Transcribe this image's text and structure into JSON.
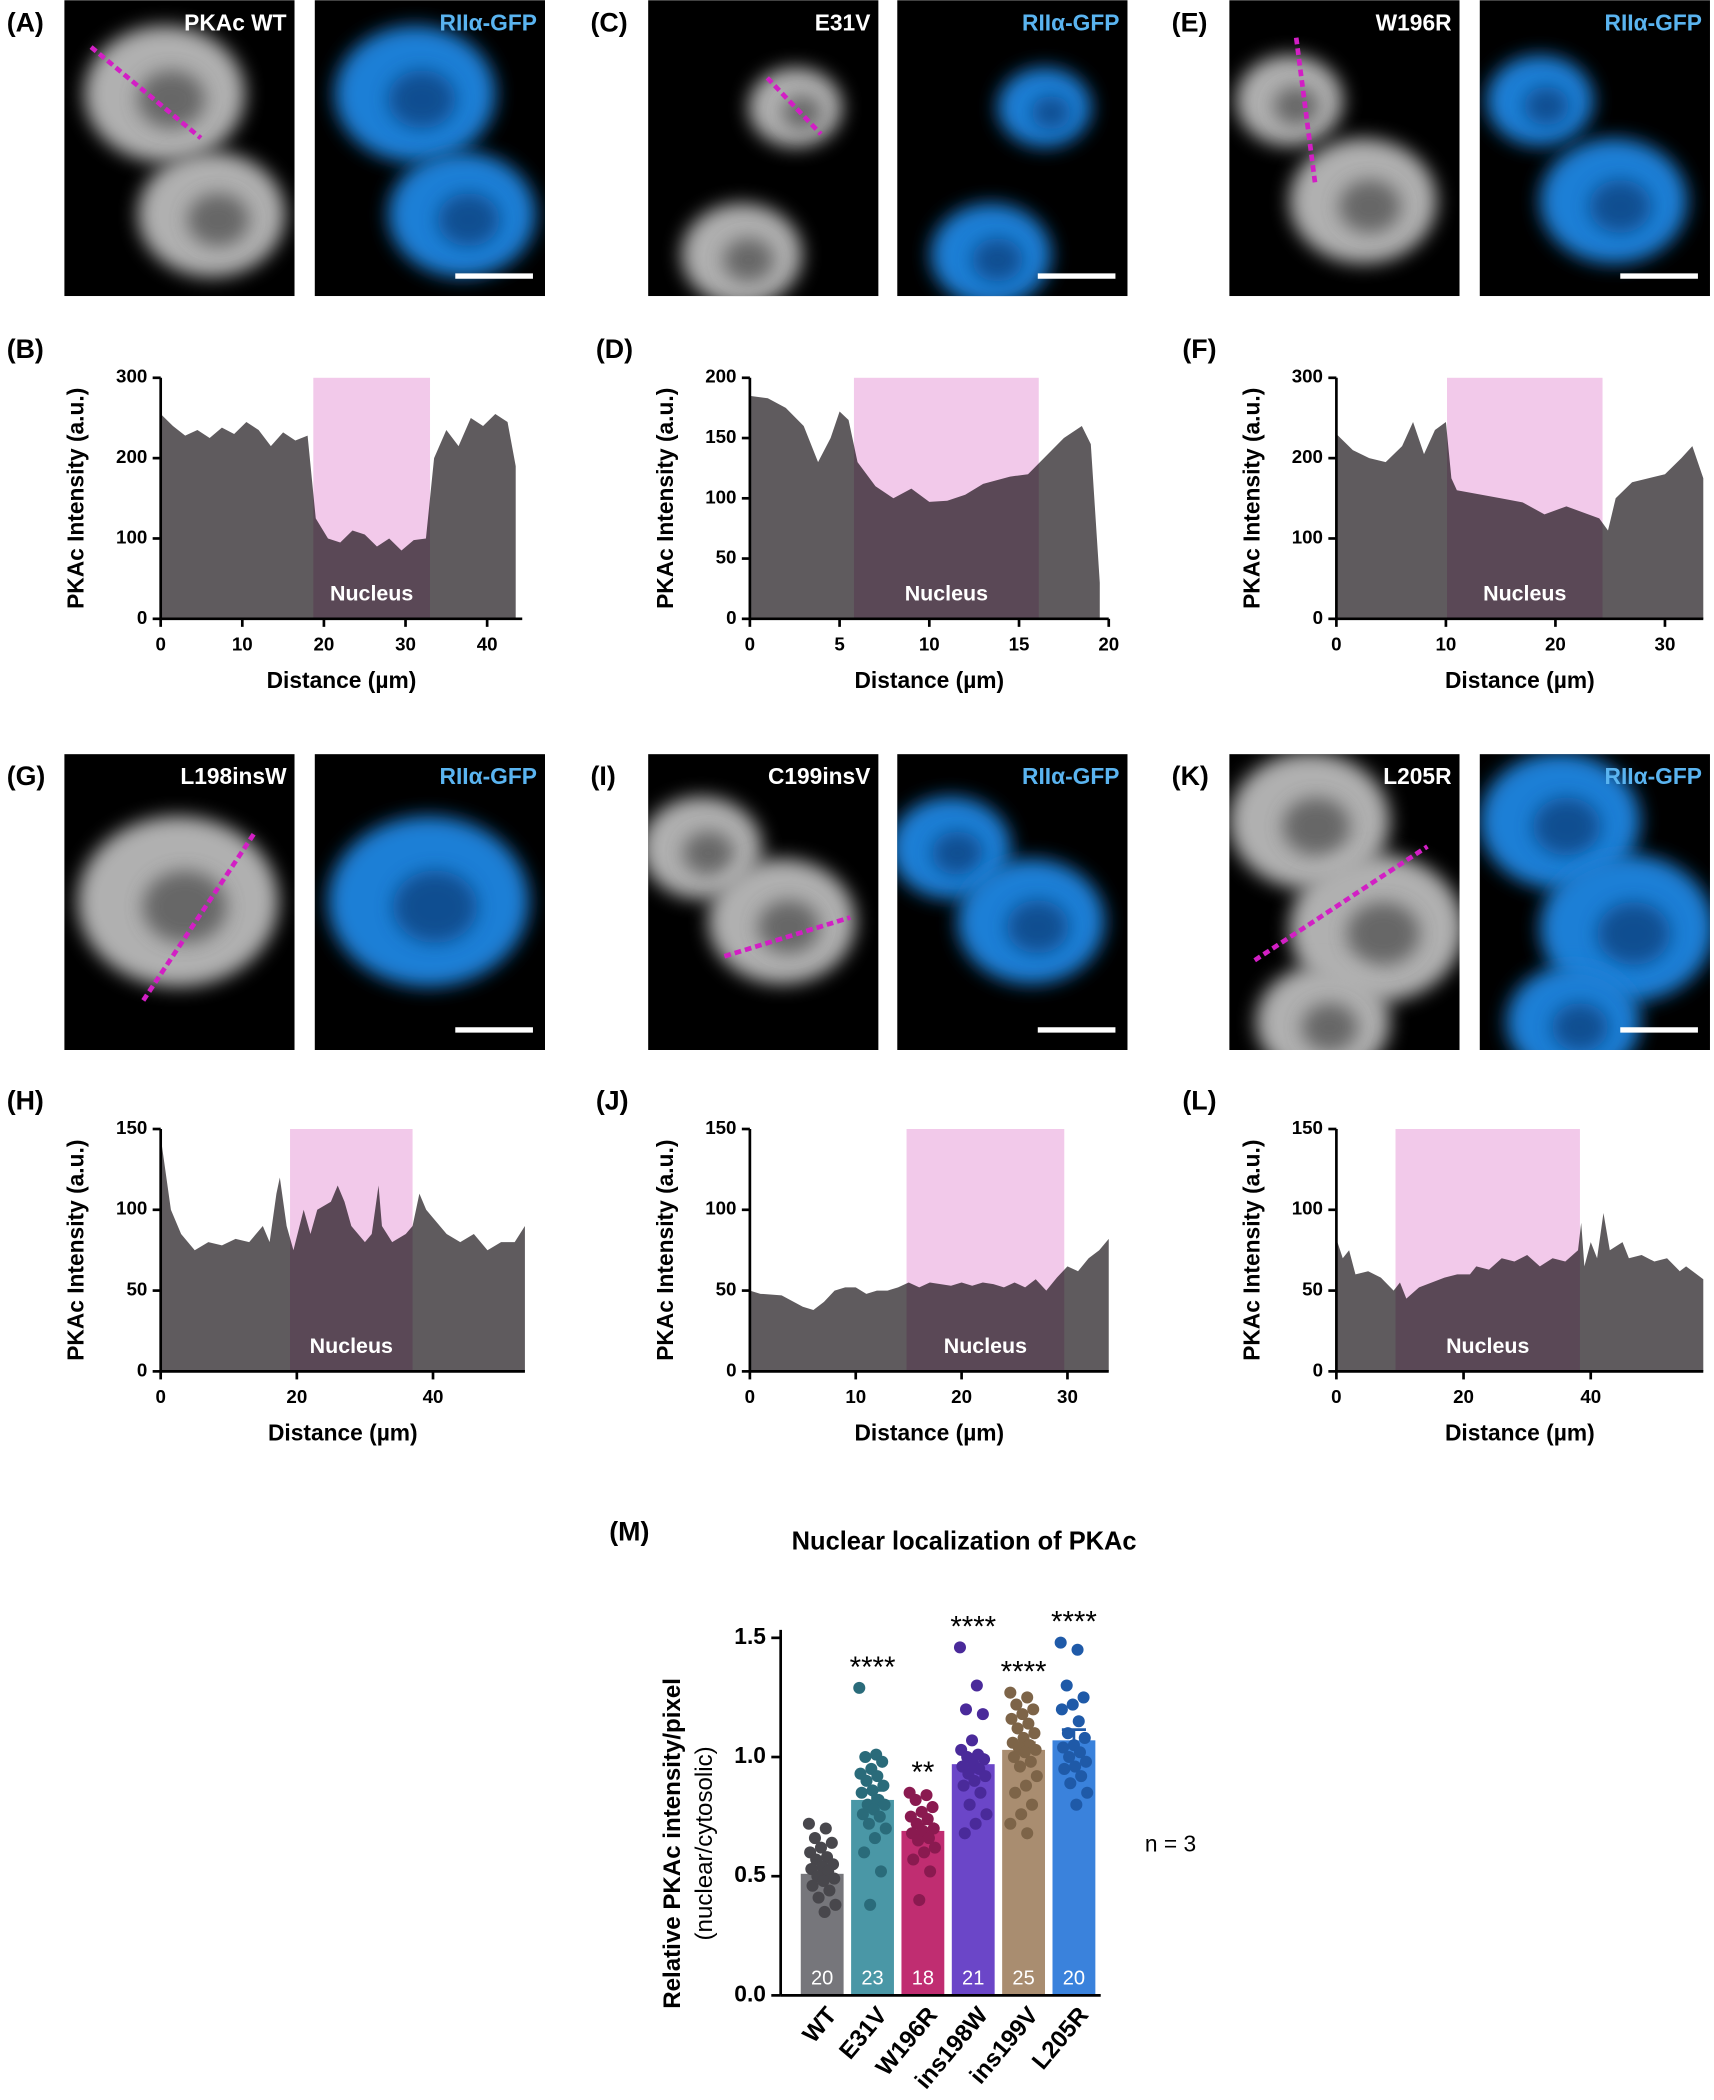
{
  "image_panels": [
    {
      "letter": "(A)",
      "label": "PKAc WT",
      "channel": "RIIα-GFP"
    },
    {
      "letter": "(C)",
      "label": "E31V",
      "channel": "RIIα-GFP"
    },
    {
      "letter": "(E)",
      "label": "W196R",
      "channel": "RIIα-GFP"
    },
    {
      "letter": "(G)",
      "label": "L198insW",
      "channel": "RIIα-GFP"
    },
    {
      "letter": "(I)",
      "label": "C199insV",
      "channel": "RIIα-GFP"
    },
    {
      "letter": "(K)",
      "label": "L205R",
      "channel": "RIIα-GFP"
    }
  ],
  "chart_data": [
    {
      "type": "area",
      "panel": "(B)",
      "xlabel": "Distance (µm)",
      "ylabel": "PKAc Intensity (a.u.)",
      "color": "#5f5b5e",
      "band_color": "#f2c9ea",
      "band": [
        18.7,
        33
      ],
      "band_label": "Nucleus",
      "xlim": [
        0,
        44.3
      ],
      "ylim": [
        0,
        300
      ],
      "xticks": [
        0,
        10,
        20,
        30,
        40
      ],
      "yticks": [
        0,
        100,
        200,
        300
      ],
      "x": [
        0,
        1.5,
        3,
        4.5,
        6,
        7.5,
        9,
        10.5,
        12,
        13.5,
        15,
        16.5,
        18,
        19,
        20.5,
        22,
        23.5,
        25,
        26.5,
        28,
        29.5,
        31,
        32.5,
        33.5,
        35,
        36.5,
        38,
        39.5,
        41,
        42.5,
        43.5
      ],
      "values": [
        255,
        240,
        228,
        235,
        225,
        238,
        230,
        245,
        235,
        215,
        232,
        222,
        228,
        125,
        100,
        95,
        110,
        105,
        90,
        100,
        85,
        98,
        100,
        200,
        235,
        215,
        250,
        240,
        255,
        245,
        190
      ]
    },
    {
      "type": "area",
      "panel": "(D)",
      "xlabel": "Distance (µm)",
      "ylabel": "PKAc Intensity (a.u.)",
      "color": "#5f5b5e",
      "band_color": "#f2c9ea",
      "band": [
        5.8,
        16.1
      ],
      "band_label": "Nucleus",
      "xlim": [
        0,
        20
      ],
      "ylim": [
        0,
        200
      ],
      "xticks": [
        0,
        5,
        10,
        15,
        20
      ],
      "yticks": [
        0,
        50,
        100,
        150,
        200
      ],
      "x": [
        0,
        1,
        2,
        3,
        3.8,
        4.5,
        5,
        5.5,
        6,
        7,
        8,
        9,
        10,
        11,
        12,
        13,
        14.5,
        15.5,
        16.5,
        17.5,
        18.5,
        19,
        19.5
      ],
      "values": [
        185,
        183,
        175,
        160,
        130,
        150,
        172,
        165,
        130,
        110,
        100,
        108,
        97,
        98,
        103,
        112,
        118,
        120,
        135,
        150,
        160,
        145,
        30
      ]
    },
    {
      "type": "area",
      "panel": "(F)",
      "xlabel": "Distance (µm)",
      "ylabel": "PKAc Intensity (a.u.)",
      "color": "#5f5b5e",
      "band_color": "#f2c9ea",
      "band": [
        10.1,
        24.3
      ],
      "band_label": "Nucleus",
      "xlim": [
        0,
        33.5
      ],
      "ylim": [
        0,
        300
      ],
      "xticks": [
        0,
        10,
        20,
        30
      ],
      "yticks": [
        0,
        100,
        200,
        300
      ],
      "x": [
        0,
        1.5,
        3,
        4.5,
        6,
        7,
        8,
        9,
        10,
        10.5,
        11,
        13,
        15,
        17,
        19,
        21,
        23,
        24,
        24.8,
        25.5,
        27,
        28.5,
        30,
        31.5,
        32.5,
        33.5
      ],
      "values": [
        230,
        210,
        200,
        195,
        215,
        245,
        205,
        235,
        245,
        175,
        160,
        155,
        150,
        145,
        130,
        140,
        130,
        125,
        110,
        150,
        170,
        175,
        180,
        200,
        215,
        175
      ]
    },
    {
      "type": "area",
      "panel": "(H)",
      "xlabel": "Distance (µm)",
      "ylabel": "PKAc Intensity (a.u.)",
      "color": "#5f5b5e",
      "band_color": "#f2c9ea",
      "band": [
        19,
        37
      ],
      "band_label": "Nucleus",
      "xlim": [
        0,
        53.5
      ],
      "ylim": [
        0,
        150
      ],
      "xticks": [
        0,
        20,
        40
      ],
      "yticks": [
        0,
        50,
        100,
        150
      ],
      "x": [
        0,
        0.5,
        1.5,
        3,
        5,
        7,
        9,
        11,
        13,
        15,
        16,
        17,
        17.5,
        18.5,
        19.5,
        21,
        22,
        23,
        25,
        26,
        27,
        28,
        30,
        31,
        32,
        32.5,
        34,
        36,
        37,
        38,
        39,
        40,
        42,
        44,
        46,
        48,
        50,
        52,
        53.5
      ],
      "values": [
        145,
        130,
        100,
        85,
        75,
        80,
        78,
        82,
        80,
        90,
        80,
        110,
        120,
        90,
        75,
        100,
        85,
        100,
        105,
        115,
        105,
        90,
        80,
        85,
        115,
        90,
        80,
        85,
        90,
        110,
        100,
        95,
        85,
        80,
        85,
        75,
        80,
        80,
        90
      ]
    },
    {
      "type": "area",
      "panel": "(J)",
      "xlabel": "Distance (µm)",
      "ylabel": "PKAc Intensity (a.u.)",
      "color": "#5f5b5e",
      "band_color": "#f2c9ea",
      "band": [
        14.8,
        29.7
      ],
      "band_label": "Nucleus",
      "xlim": [
        0,
        33.9
      ],
      "ylim": [
        0,
        150
      ],
      "xticks": [
        0,
        10,
        20,
        30
      ],
      "yticks": [
        0,
        50,
        100,
        150
      ],
      "x": [
        0,
        1,
        3,
        5,
        6,
        7,
        8,
        9,
        10,
        11,
        12,
        13,
        14,
        15,
        16,
        17,
        18,
        19,
        20,
        21,
        22,
        23,
        24,
        25,
        26,
        27,
        28,
        29,
        30,
        31,
        32,
        33,
        33.9
      ],
      "values": [
        50,
        48,
        47,
        40,
        38,
        43,
        50,
        52,
        52,
        48,
        50,
        50,
        52,
        55,
        52,
        55,
        54,
        53,
        55,
        53,
        55,
        54,
        52,
        55,
        52,
        57,
        50,
        58,
        65,
        62,
        70,
        75,
        82
      ]
    },
    {
      "type": "area",
      "panel": "(L)",
      "xlabel": "Distance (µm)",
      "ylabel": "PKAc Intensity (a.u.)",
      "color": "#5f5b5e",
      "band_color": "#f2c9ea",
      "band": [
        9.3,
        38.3
      ],
      "band_label": "Nucleus",
      "xlim": [
        0,
        57.7
      ],
      "ylim": [
        0,
        150
      ],
      "xticks": [
        0,
        20,
        40
      ],
      "yticks": [
        0,
        50,
        100,
        150
      ],
      "x": [
        0,
        1,
        2,
        3,
        5,
        7,
        9,
        10,
        11,
        13,
        15,
        17,
        19,
        21,
        22,
        24,
        26,
        28,
        30,
        32,
        34,
        36,
        38,
        38.5,
        39,
        40,
        41,
        42,
        43,
        45,
        46,
        48,
        50,
        52,
        54,
        55,
        57.7
      ],
      "values": [
        82,
        70,
        75,
        60,
        62,
        58,
        50,
        55,
        45,
        52,
        55,
        58,
        60,
        60,
        65,
        63,
        70,
        68,
        72,
        65,
        70,
        68,
        75,
        92,
        65,
        80,
        70,
        98,
        75,
        80,
        70,
        72,
        68,
        70,
        62,
        65,
        57
      ]
    },
    {
      "type": "bar",
      "panel": "(M)",
      "title": "Nuclear localization of PKAc",
      "ylabel": "Relative PKAc intensity/pixel",
      "ylabel2": "(nuclear/cytosolic)",
      "categories": [
        "WT",
        "E31V",
        "W196R",
        "ins198W",
        "ins199V",
        "L205R"
      ],
      "values": [
        0.51,
        0.82,
        0.69,
        0.97,
        1.03,
        1.07
      ],
      "errors": [
        0.025,
        0.04,
        0.03,
        0.04,
        0.03,
        0.045
      ],
      "colors": [
        "#76767b",
        "#4a97a6",
        "#c02d71",
        "#6b46c8",
        "#a98d70",
        "#3a82dc"
      ],
      "point_colors": [
        "#48474c",
        "#2a6b7a",
        "#8a1a50",
        "#4a2a9a",
        "#7d6448",
        "#1f5aa8"
      ],
      "counts": [
        20,
        23,
        18,
        21,
        25,
        20
      ],
      "annotations": [
        null,
        "****",
        "**",
        "****",
        "****",
        "****"
      ],
      "note": "n = 3",
      "ylim": [
        0,
        1.5
      ],
      "yticks": [
        {
          "value": 0,
          "label": "0.0"
        },
        0.5,
        {
          "value": 1,
          "label": "1.0"
        },
        1.5
      ],
      "points": [
        [
          0.72,
          0.7,
          0.66,
          0.64,
          0.62,
          0.6,
          0.58,
          0.57,
          0.55,
          0.54,
          0.53,
          0.52,
          0.5,
          0.49,
          0.48,
          0.46,
          0.44,
          0.41,
          0.38,
          0.35
        ],
        [
          1.29,
          1.01,
          1.0,
          0.98,
          0.95,
          0.93,
          0.92,
          0.9,
          0.88,
          0.86,
          0.85,
          0.82,
          0.8,
          0.8,
          0.78,
          0.76,
          0.75,
          0.72,
          0.7,
          0.66,
          0.6,
          0.52,
          0.38
        ],
        [
          0.85,
          0.84,
          0.82,
          0.79,
          0.77,
          0.75,
          0.74,
          0.72,
          0.7,
          0.69,
          0.68,
          0.66,
          0.65,
          0.62,
          0.6,
          0.57,
          0.52,
          0.4
        ],
        [
          1.46,
          1.3,
          1.2,
          1.18,
          1.07,
          1.03,
          1.01,
          1.0,
          0.99,
          0.97,
          0.96,
          0.95,
          0.93,
          0.92,
          0.9,
          0.88,
          0.85,
          0.8,
          0.76,
          0.72,
          0.68
        ],
        [
          1.27,
          1.25,
          1.22,
          1.2,
          1.18,
          1.16,
          1.14,
          1.12,
          1.1,
          1.08,
          1.06,
          1.05,
          1.04,
          1.03,
          1.02,
          1.0,
          0.98,
          0.96,
          0.92,
          0.88,
          0.85,
          0.8,
          0.76,
          0.72,
          0.68
        ],
        [
          1.48,
          1.45,
          1.3,
          1.25,
          1.22,
          1.2,
          1.15,
          1.1,
          1.08,
          1.05,
          1.04,
          1.02,
          1.0,
          0.98,
          0.96,
          0.95,
          0.92,
          0.89,
          0.85,
          0.8
        ]
      ]
    }
  ]
}
